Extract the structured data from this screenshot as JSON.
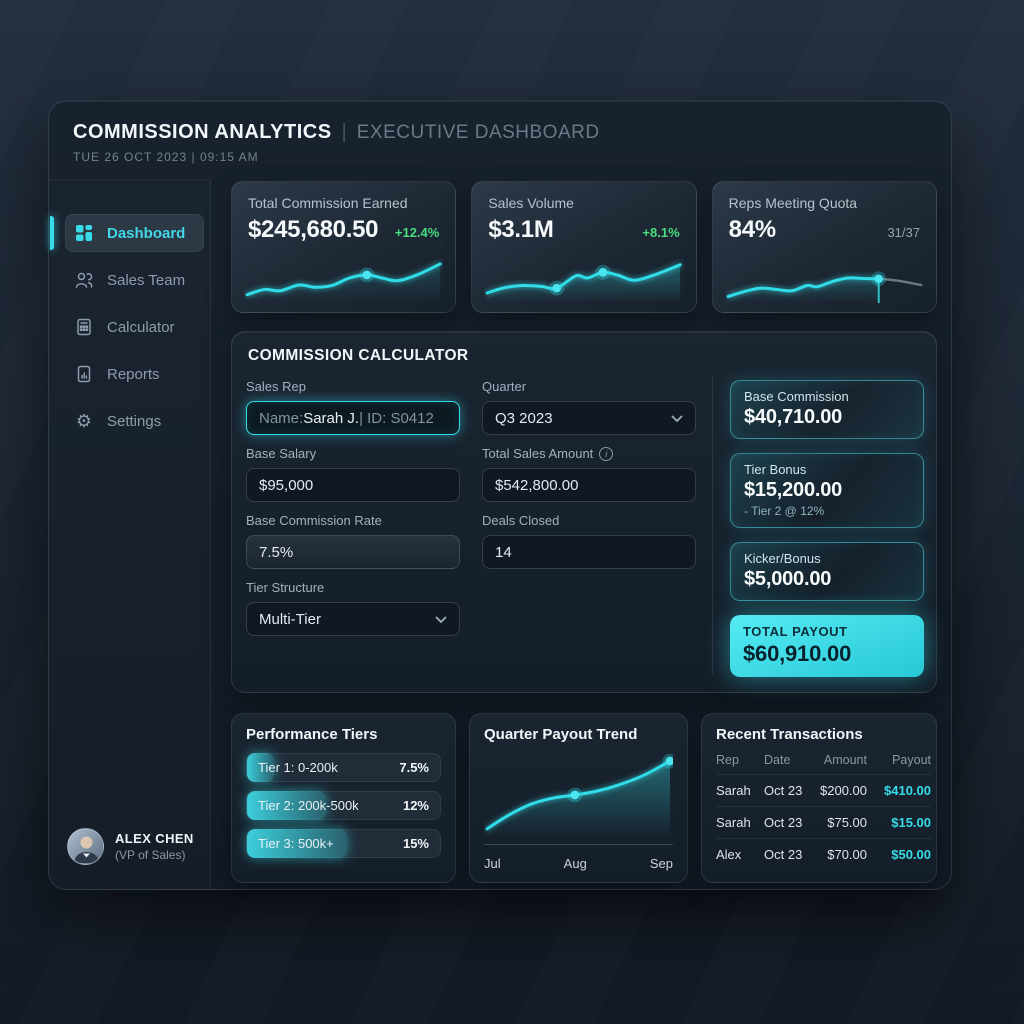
{
  "colors": {
    "accent": "#35dce7",
    "positive": "#4ade80",
    "neutral": "#97a4b2",
    "total_payout_bg": "#3ce3ed"
  },
  "header": {
    "title": "COMMISSION ANALYTICS",
    "divider": "|",
    "subtitle": "EXECUTIVE DASHBOARD",
    "datetime": "TUE 26 OCT 2023 | 09:15 AM"
  },
  "sidebar": {
    "items": [
      {
        "label": "Dashboard",
        "icon": "dashboard-grid-icon",
        "active": true
      },
      {
        "label": "Sales Team",
        "icon": "users-icon",
        "active": false
      },
      {
        "label": "Calculator",
        "icon": "calculator-icon",
        "active": false
      },
      {
        "label": "Reports",
        "icon": "report-doc-icon",
        "active": false
      },
      {
        "label": "Settings",
        "icon": "gear-icon",
        "active": false
      }
    ],
    "gear_glyph": "⚙",
    "user": {
      "name": "ALEX CHEN",
      "role": "(VP of Sales)"
    }
  },
  "kpis": [
    {
      "label": "Total Commission Earned",
      "value": "$245,680.50",
      "delta": "+12.4%"
    },
    {
      "label": "Sales Volume",
      "value": "$3.1M",
      "delta": "+8.1%"
    },
    {
      "label": "Reps Meeting Quota",
      "value": "84%",
      "delta": "31/37"
    }
  ],
  "calculator": {
    "title": "COMMISSION CALCULATOR",
    "sales_rep": {
      "label": "Sales Rep",
      "prefix": "Name: ",
      "name": "Sarah J. ",
      "suffix": "| ID: S0412"
    },
    "quarter": {
      "label": "Quarter",
      "value": "Q3 2023"
    },
    "base_salary": {
      "label": "Base Salary",
      "value": "$95,000"
    },
    "total_sales": {
      "label": "Total Sales Amount",
      "info_glyph": "i",
      "value": "$542,800.00"
    },
    "base_rate": {
      "label": "Base Commission Rate",
      "value": "7.5%"
    },
    "deals_closed": {
      "label": "Deals Closed",
      "value": "14"
    },
    "tier_structure": {
      "label": "Tier Structure",
      "value": "Multi-Tier"
    },
    "results": [
      {
        "label": "Base Commission",
        "value": "$40,710.00"
      },
      {
        "label": "Tier Bonus",
        "value": "$15,200.00",
        "note": "- Tier 2 @ 12%"
      },
      {
        "label": "Kicker/Bonus",
        "value": "$5,000.00"
      }
    ],
    "total": {
      "label": "TOTAL PAYOUT",
      "value": "$60,910.00"
    }
  },
  "performance_tiers": {
    "title": "Performance Tiers",
    "rows": [
      {
        "label": "Tier 1: 0-200k",
        "rate": "7.5%",
        "fill_pct": 14
      },
      {
        "label": "Tier 2: 200k-500k",
        "rate": "12%",
        "fill_pct": 41
      },
      {
        "label": "Tier 3: 500k+",
        "rate": "15%",
        "fill_pct": 52
      }
    ]
  },
  "transactions": {
    "title": "Recent Transactions",
    "columns": [
      "Rep",
      "Date",
      "Amount",
      "Payout"
    ],
    "rows": [
      {
        "rep": "Sarah",
        "date": "Oct 23",
        "amount": "$200.00",
        "payout": "$410.00"
      },
      {
        "rep": "Sarah",
        "date": "Oct 23",
        "amount": "$75.00",
        "payout": "$15.00"
      },
      {
        "rep": "Alex",
        "date": "Oct 23",
        "amount": "$70.00",
        "payout": "$50.00"
      }
    ]
  },
  "chart_data": [
    {
      "id": "total-commission-sparkline",
      "type": "area",
      "title": "Total Commission Earned trend (unlabeled sparkline)",
      "points_norm": [
        [
          0,
          12
        ],
        [
          9,
          24
        ],
        [
          17,
          21
        ],
        [
          27,
          34
        ],
        [
          35,
          29
        ],
        [
          44,
          33
        ],
        [
          53,
          50
        ],
        [
          62,
          57
        ],
        [
          70,
          50
        ],
        [
          78,
          44
        ],
        [
          88,
          57
        ],
        [
          100,
          82
        ]
      ],
      "dots": [
        7
      ],
      "area_opacity": 0.1
    },
    {
      "id": "sales-volume-sparkline",
      "type": "area",
      "title": "Sales Volume trend (unlabeled sparkline)",
      "points_norm": [
        [
          0,
          16
        ],
        [
          9,
          28
        ],
        [
          18,
          33
        ],
        [
          28,
          31
        ],
        [
          36,
          27
        ],
        [
          46,
          55
        ],
        [
          52,
          50
        ],
        [
          60,
          63
        ],
        [
          68,
          56
        ],
        [
          76,
          45
        ],
        [
          86,
          56
        ],
        [
          100,
          80
        ]
      ],
      "dots": [
        4,
        7
      ],
      "area_opacity": 0.2
    },
    {
      "id": "reps-quota-sparkline",
      "type": "line",
      "title": "Reps Meeting Quota trend (unlabeled sparkline)",
      "points_norm": [
        [
          0,
          8
        ],
        [
          9,
          20
        ],
        [
          17,
          27
        ],
        [
          25,
          24
        ],
        [
          33,
          21
        ],
        [
          41,
          33
        ],
        [
          46,
          30
        ],
        [
          54,
          42
        ],
        [
          62,
          50
        ],
        [
          70,
          49
        ],
        [
          78,
          48
        ]
      ],
      "dots": [
        10
      ],
      "drop_line": true,
      "tail_norm": [
        [
          78,
          48
        ],
        [
          88,
          44
        ],
        [
          100,
          34
        ]
      ],
      "area_opacity": 0.12
    },
    {
      "id": "quarter-payout-trend",
      "type": "area",
      "title": "Quarter Payout Trend",
      "x_labels": [
        "Jul",
        "Aug",
        "Sep"
      ],
      "values_norm": [
        10,
        52,
        96
      ],
      "points_norm": [
        [
          0,
          8
        ],
        [
          12,
          26
        ],
        [
          24,
          40
        ],
        [
          36,
          48
        ],
        [
          48,
          52
        ],
        [
          60,
          57
        ],
        [
          72,
          65
        ],
        [
          86,
          78
        ],
        [
          100,
          96
        ]
      ],
      "dots": [
        4,
        8
      ],
      "area_opacity": 0.22
    }
  ]
}
